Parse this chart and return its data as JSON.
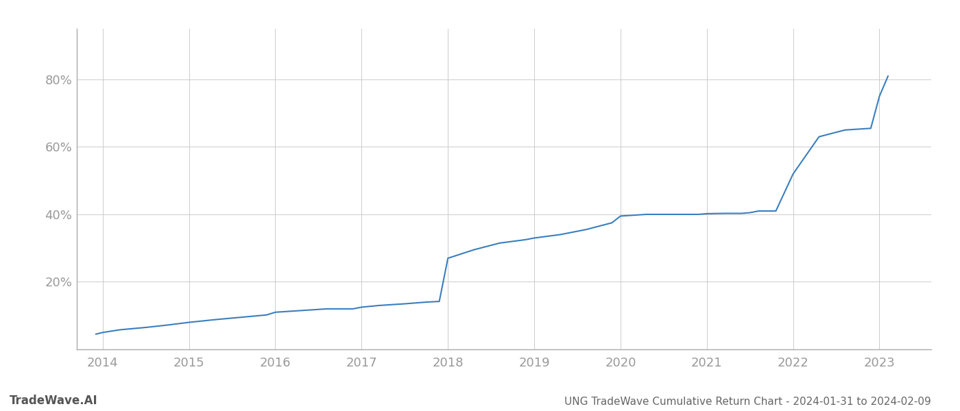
{
  "title": "UNG TradeWave Cumulative Return Chart - 2024-01-31 to 2024-02-09",
  "watermark": "TradeWave.AI",
  "line_color": "#3a7ebf",
  "background_color": "#ffffff",
  "grid_color": "#cccccc",
  "x_values": [
    2013.92,
    2014.0,
    2014.2,
    2014.5,
    2014.75,
    2015.0,
    2015.3,
    2015.6,
    2015.9,
    2016.0,
    2016.3,
    2016.6,
    2016.9,
    2017.0,
    2017.2,
    2017.5,
    2017.75,
    2017.9,
    2018.0,
    2018.3,
    2018.6,
    2018.9,
    2019.0,
    2019.3,
    2019.6,
    2019.9,
    2020.0,
    2020.3,
    2020.6,
    2020.9,
    2021.0,
    2021.2,
    2021.4,
    2021.5,
    2021.6,
    2021.8,
    2022.0,
    2022.3,
    2022.6,
    2022.9,
    2023.0,
    2023.1
  ],
  "y_values": [
    4.5,
    5.0,
    5.8,
    6.5,
    7.2,
    8.0,
    8.8,
    9.5,
    10.2,
    11.0,
    11.5,
    12.0,
    12.0,
    12.5,
    13.0,
    13.5,
    14.0,
    14.2,
    27.0,
    29.5,
    31.5,
    32.5,
    33.0,
    34.0,
    35.5,
    37.5,
    39.5,
    40.0,
    40.0,
    40.0,
    40.2,
    40.3,
    40.3,
    40.5,
    41.0,
    41.0,
    52.0,
    63.0,
    65.0,
    65.5,
    75.0,
    81.0
  ],
  "xlim": [
    2013.7,
    2023.6
  ],
  "ylim": [
    0,
    95
  ],
  "yticks": [
    20,
    40,
    60,
    80
  ],
  "xticks": [
    2014,
    2015,
    2016,
    2017,
    2018,
    2019,
    2020,
    2021,
    2022,
    2023
  ],
  "tick_color": "#aaaaaa",
  "label_color": "#999999",
  "title_color": "#666666",
  "watermark_color": "#555555",
  "line_width": 1.5,
  "title_fontsize": 11,
  "tick_fontsize": 13,
  "watermark_fontsize": 12
}
